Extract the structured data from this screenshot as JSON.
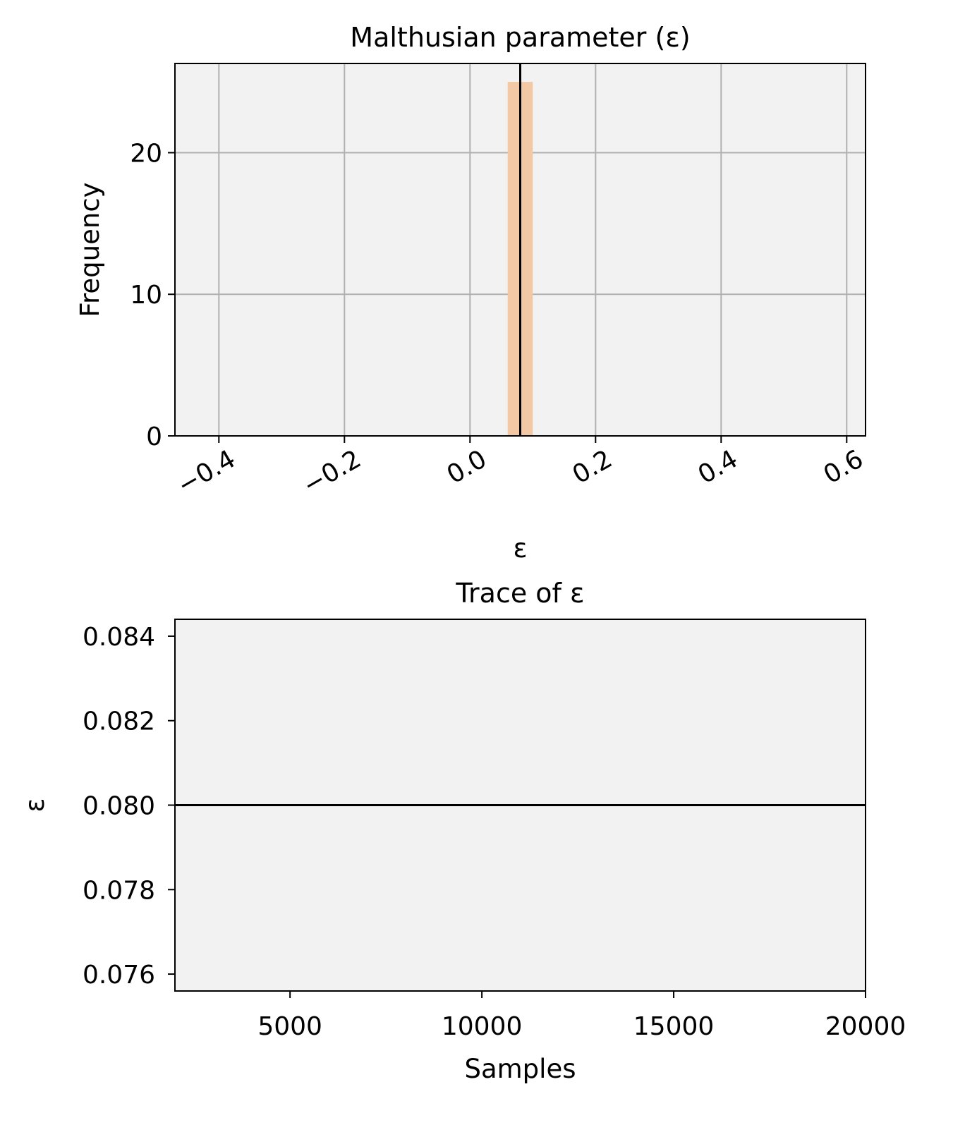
{
  "chart_data": [
    {
      "type": "bar",
      "title": "Malthusian parameter (ε)",
      "xlabel": "ε",
      "ylabel": "Frequency",
      "xlim": [
        -0.47,
        0.63
      ],
      "ylim": [
        0,
        26.3
      ],
      "xticks": [
        -0.4,
        -0.2,
        0.0,
        0.2,
        0.4,
        0.6
      ],
      "xtick_labels": [
        "−0.4",
        "−0.2",
        "0.0",
        "0.2",
        "0.4",
        "0.6"
      ],
      "yticks": [
        0,
        10,
        20
      ],
      "ytick_labels": [
        "0",
        "10",
        "20"
      ],
      "grid": true,
      "bins": [
        {
          "x0": 0.06,
          "x1": 0.1,
          "value": 25
        }
      ],
      "vline": 0.08,
      "colors": {
        "bar": "#f3c8a5",
        "vline": "#000000",
        "background": "#f2f2f2",
        "grid": "#b0b0b0"
      }
    },
    {
      "type": "line",
      "title": "Trace of ε",
      "xlabel": "Samples",
      "ylabel": "ε",
      "xlim": [
        2000,
        20000
      ],
      "ylim": [
        0.0756,
        0.0844
      ],
      "xticks": [
        5000,
        10000,
        15000,
        20000
      ],
      "xtick_labels": [
        "5000",
        "10000",
        "15000",
        "20000"
      ],
      "yticks": [
        0.076,
        0.078,
        0.08,
        0.082,
        0.084
      ],
      "ytick_labels": [
        "0.076",
        "0.078",
        "0.080",
        "0.082",
        "0.084"
      ],
      "grid": false,
      "series": [
        {
          "x": [
            2000,
            20000
          ],
          "y": [
            0.08,
            0.08
          ]
        }
      ],
      "colors": {
        "line": "#000000",
        "background": "#f2f2f2"
      }
    }
  ]
}
